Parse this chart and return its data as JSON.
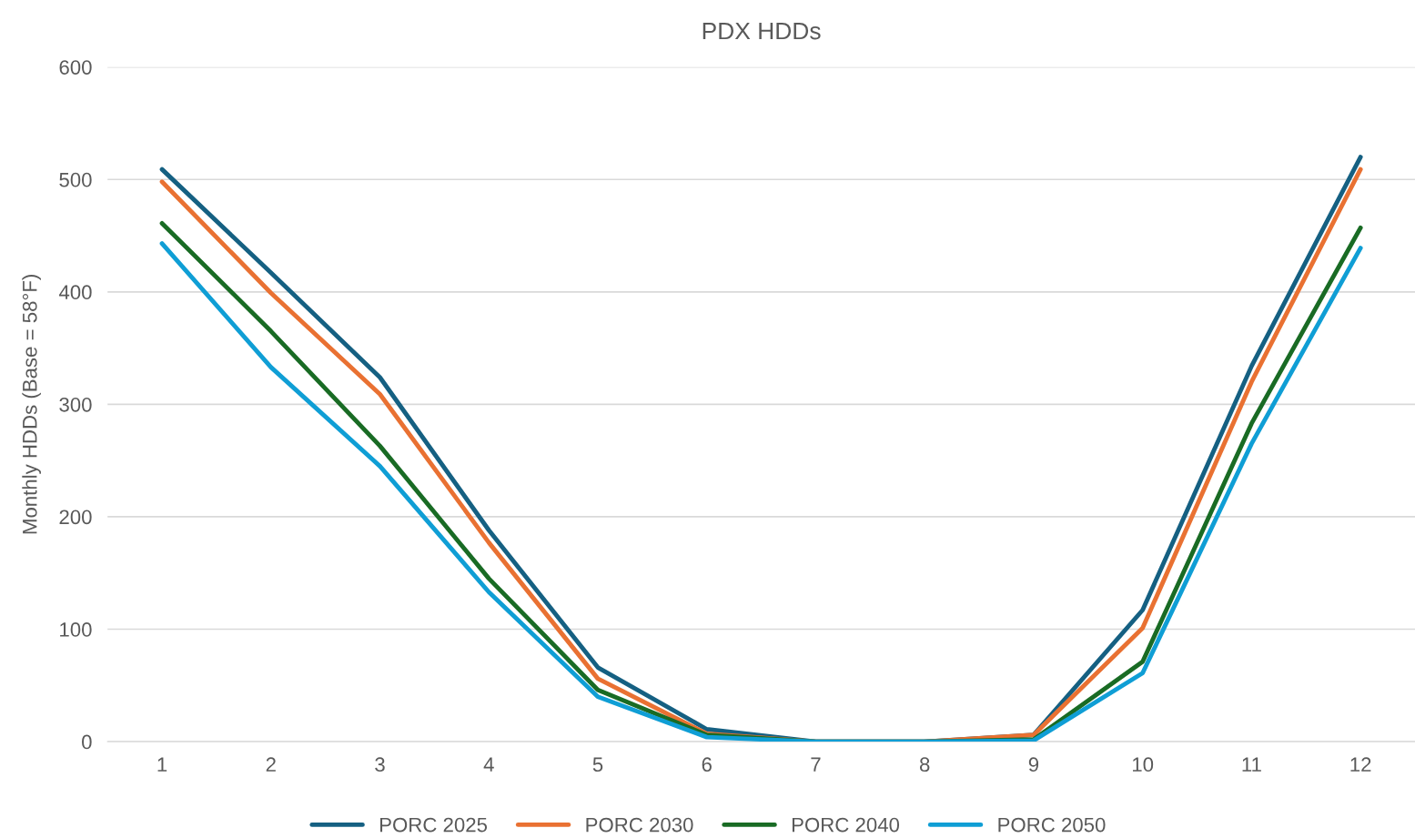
{
  "chart_data": {
    "type": "line",
    "title": "PDX HDDs",
    "ylabel": "Monthly HDDs (Base = 58°F)",
    "categories": [
      "1",
      "2",
      "3",
      "4",
      "5",
      "6",
      "7",
      "8",
      "9",
      "10",
      "11",
      "12"
    ],
    "series": [
      {
        "name": "PORC 2025",
        "color": "#156082",
        "values": [
          509,
          417,
          324,
          188,
          66,
          11,
          0,
          0,
          6,
          117,
          334,
          520
        ]
      },
      {
        "name": "PORC 2030",
        "color": "#e97132",
        "values": [
          498,
          399,
          309,
          177,
          56,
          7,
          0,
          0,
          6,
          101,
          320,
          509
        ]
      },
      {
        "name": "PORC 2040",
        "color": "#196b24",
        "values": [
          461,
          365,
          263,
          145,
          46,
          6,
          0,
          0,
          2,
          71,
          283,
          457
        ]
      },
      {
        "name": "PORC 2050",
        "color": "#0f9ed5",
        "values": [
          443,
          333,
          245,
          133,
          40,
          4,
          0,
          0,
          1,
          61,
          265,
          439
        ]
      }
    ],
    "ylim": [
      0,
      600
    ],
    "yticks": [
      0,
      100,
      200,
      300,
      400,
      500,
      600
    ],
    "grid": "y",
    "legend": "bottom",
    "marker": "none",
    "line_style": "solid"
  }
}
